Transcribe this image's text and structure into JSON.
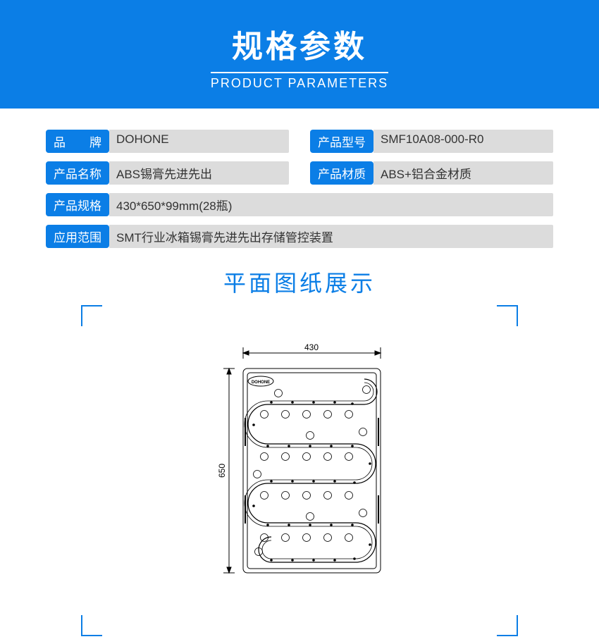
{
  "header": {
    "title": "规格参数",
    "subtitle": "PRODUCT PARAMETERS"
  },
  "params": [
    {
      "label": "品　　牌",
      "value": "DOHONE",
      "full": false
    },
    {
      "label": "产品型号",
      "value": "SMF10A08-000-R0",
      "full": false
    },
    {
      "label": "产品名称",
      "value": "ABS锡膏先进先出",
      "full": false
    },
    {
      "label": "产品材质",
      "value": "ABS+铝合金材质",
      "full": false
    },
    {
      "label": "产品规格",
      "value": "430*650*99mm(28瓶)",
      "full": true
    },
    {
      "label": "应用范围",
      "value": "SMT行业冰箱锡膏先进先出存储管控装置",
      "full": true
    }
  ],
  "drawing": {
    "title": "平面图纸展示",
    "width_dim": "430",
    "height_dim": "650",
    "brand_label": "DOHONE",
    "colors": {
      "accent": "#0b7ee6",
      "label_bg": "#dcdcdc",
      "stroke": "#000000"
    }
  }
}
